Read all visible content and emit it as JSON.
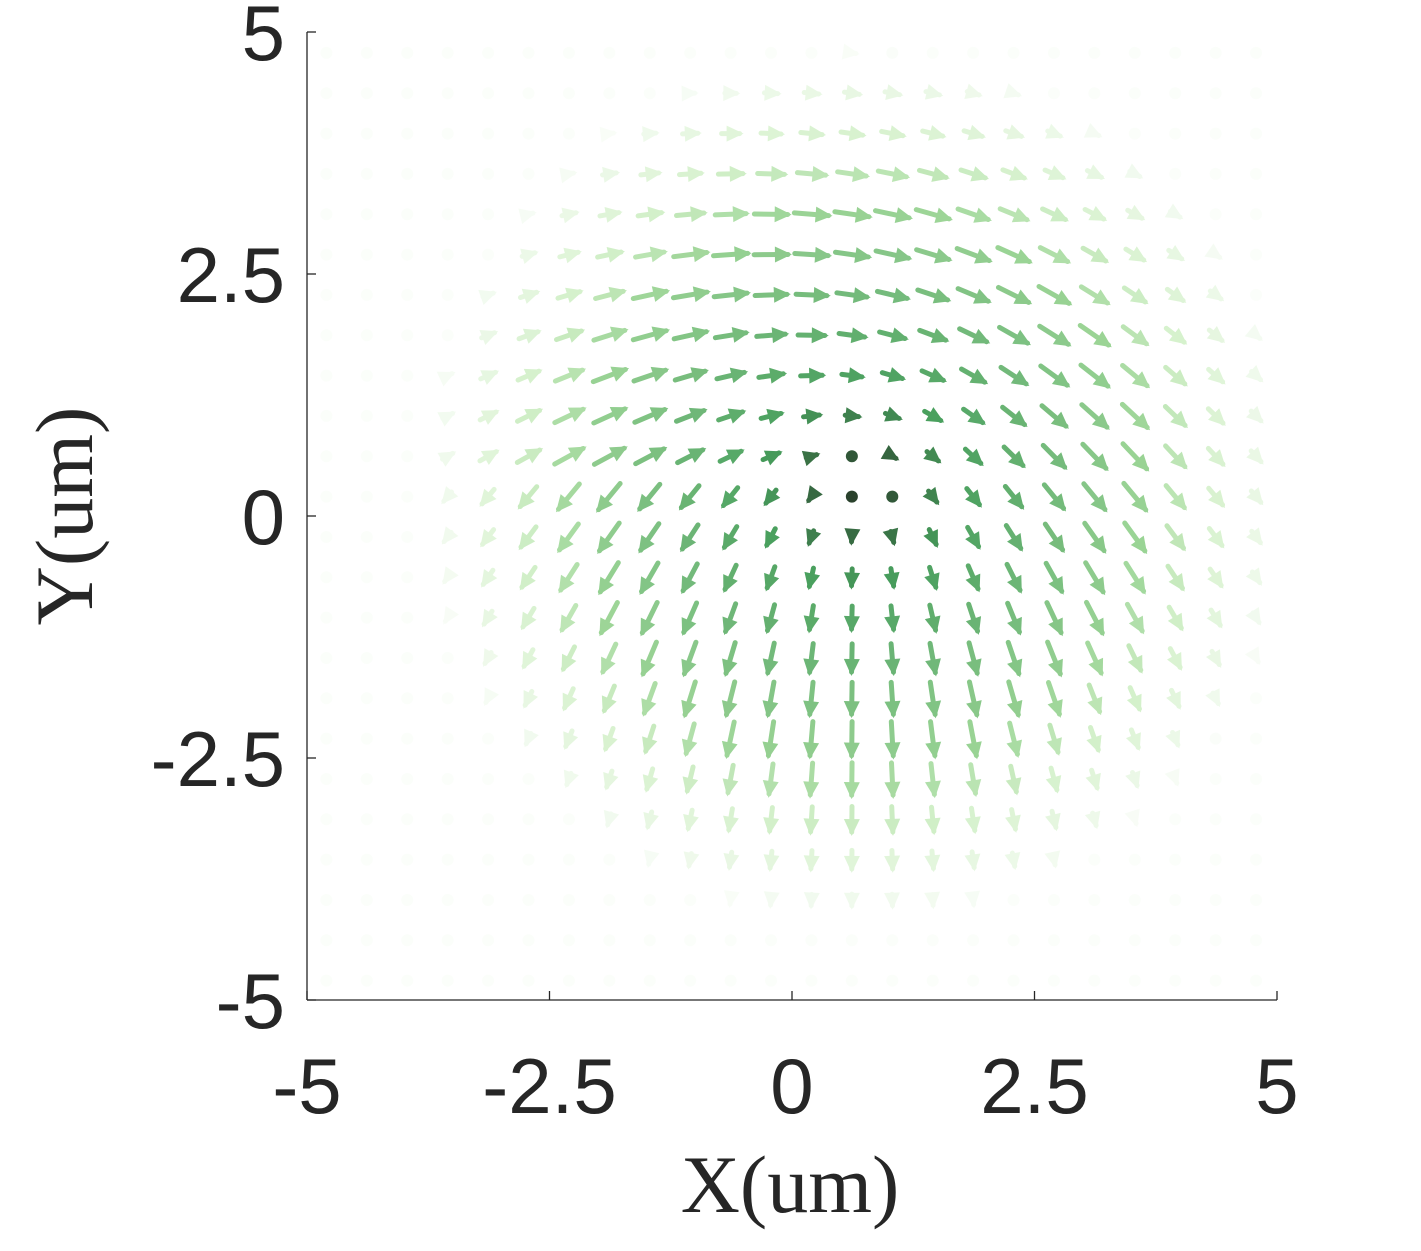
{
  "chart_data": {
    "type": "scatter",
    "subtype": "quiver-field",
    "xlabel": "X(um)",
    "ylabel": "Y(um)",
    "xlim": [
      -5,
      5
    ],
    "ylim": [
      -5,
      5
    ],
    "xticks": [
      -5,
      -2.5,
      0,
      2.5,
      5
    ],
    "yticks": [
      -5,
      -2.5,
      0,
      2.5,
      5
    ],
    "xtick_labels": [
      "-5",
      "-2.5",
      "0",
      "2.5",
      "5"
    ],
    "ytick_labels": [
      "-5",
      "-2.5",
      "0",
      "2.5",
      "5"
    ],
    "grid": false,
    "legend": "none",
    "grid_spacing": 0.4167,
    "field": "Skyrmion-like spin texture centred near (0.7, 0.3) um with radius about 2.9 um; in-plane arrows point outward-downward with mostly green tones, arrows near the core are short (mostly out-of-plane, dark dots) and arrows fade out beyond the texture boundary.",
    "colors": {
      "axis": "#262626",
      "core": "#1a2a1a",
      "ring": "#3f9a55",
      "outer": "#b8e8a8",
      "background": "#ffffff"
    }
  }
}
